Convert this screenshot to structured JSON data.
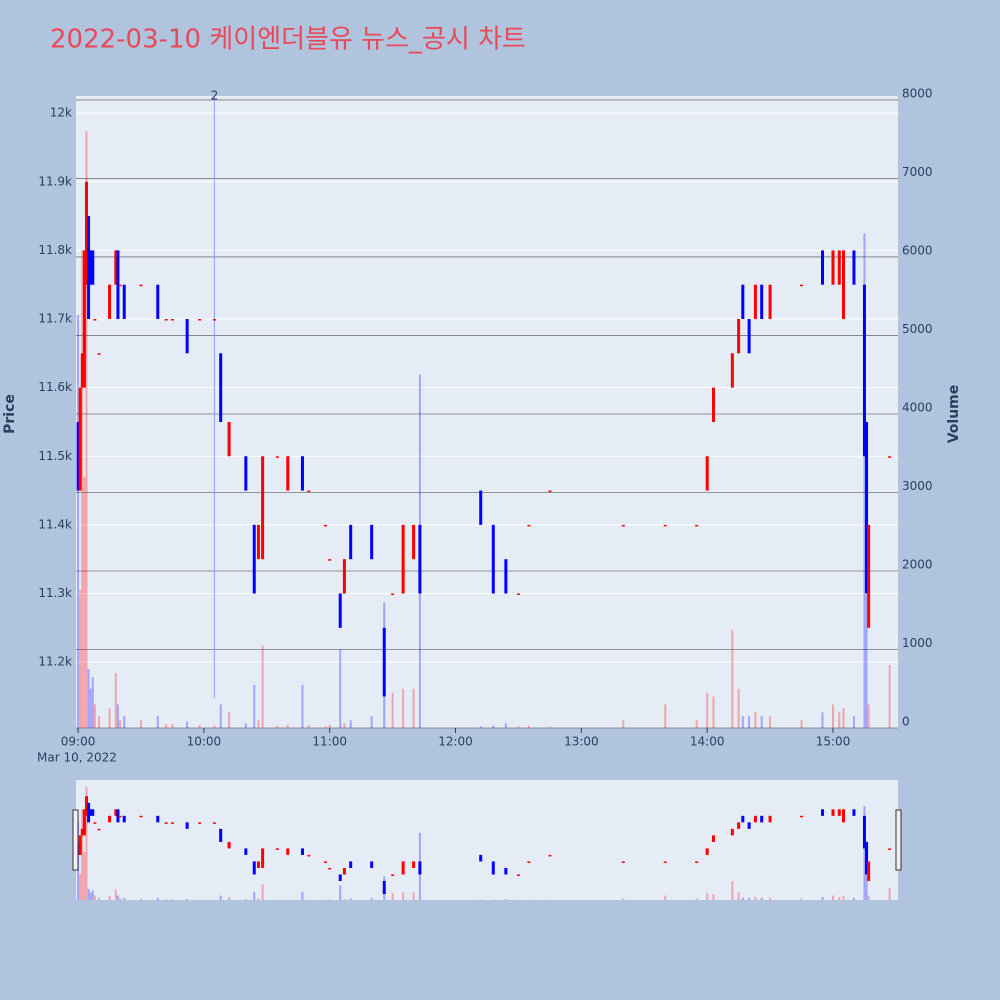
{
  "chart_data": {
    "type": "candlestick",
    "title": "2022-03-10 케이엔더블유 뉴스_공시 차트",
    "x": [
      "09:00",
      "09:01",
      "09:02",
      "09:03",
      "09:04",
      "09:05",
      "09:06",
      "09:07",
      "09:08",
      "09:10",
      "09:15",
      "09:18",
      "09:19",
      "09:20",
      "09:22",
      "09:30",
      "09:38",
      "09:42",
      "09:45",
      "09:52",
      "09:58",
      "10:05",
      "10:08",
      "10:12",
      "10:20",
      "10:24",
      "10:26",
      "10:28",
      "10:35",
      "10:40",
      "10:47",
      "10:50",
      "10:58",
      "11:00",
      "11:05",
      "11:07",
      "11:10",
      "11:20",
      "11:26",
      "11:30",
      "11:35",
      "11:40",
      "11:43",
      "12:12",
      "12:18",
      "12:24",
      "12:30",
      "12:35",
      "12:45",
      "13:20",
      "13:40",
      "13:55",
      "14:00",
      "14:03",
      "14:12",
      "14:15",
      "14:17",
      "14:20",
      "14:23",
      "14:26",
      "14:30",
      "14:45",
      "14:55",
      "15:00",
      "15:03",
      "15:05",
      "15:10",
      "15:15",
      "15:16",
      "15:17",
      "15:27"
    ],
    "open": [
      11550,
      11450,
      11600,
      11600,
      11750,
      11850,
      11800,
      11800,
      11700,
      11650,
      11700,
      11750,
      11800,
      11750,
      11750,
      11750,
      11750,
      11700,
      11700,
      11700,
      11700,
      11700,
      11650,
      11500,
      11500,
      11400,
      11350,
      11350,
      11500,
      11450,
      11500,
      11450,
      11400,
      11350,
      11300,
      11300,
      11400,
      11400,
      11250,
      11300,
      11300,
      11350,
      11400,
      11450,
      11400,
      11350,
      11300,
      11400,
      11450,
      11400,
      11400,
      11400,
      11450,
      11550,
      11600,
      11650,
      11750,
      11700,
      11700,
      11750,
      11700,
      11750,
      11800,
      11750,
      11750,
      11700,
      11800,
      11750,
      11550,
      11250,
      11500
    ],
    "close": [
      11450,
      11600,
      11650,
      11800,
      11900,
      11700,
      11750,
      11750,
      11700,
      11650,
      11750,
      11800,
      11700,
      11750,
      11700,
      11750,
      11700,
      11700,
      11700,
      11650,
      11700,
      11700,
      11550,
      11550,
      11450,
      11300,
      11400,
      11500,
      11500,
      11500,
      11450,
      11450,
      11400,
      11350,
      11250,
      11350,
      11350,
      11350,
      11150,
      11300,
      11400,
      11400,
      11300,
      11400,
      11300,
      11300,
      11300,
      11400,
      11450,
      11400,
      11400,
      11400,
      11500,
      11600,
      11650,
      11700,
      11700,
      11650,
      11750,
      11700,
      11750,
      11750,
      11750,
      11800,
      11800,
      11800,
      11750,
      11500,
      11300,
      11400,
      11500
    ],
    "volume": [
      5260,
      1760,
      6090,
      3200,
      7600,
      750,
      500,
      650,
      300,
      150,
      250,
      700,
      300,
      100,
      150,
      100,
      150,
      50,
      50,
      80,
      40,
      30,
      300,
      200,
      60,
      550,
      100,
      1050,
      30,
      40,
      550,
      40,
      20,
      40,
      1000,
      60,
      100,
      150,
      1600,
      450,
      500,
      500,
      4500,
      20,
      30,
      60,
      20,
      30,
      10,
      100,
      300,
      100,
      450,
      400,
      1250,
      500,
      150,
      150,
      200,
      150,
      150,
      100,
      200,
      300,
      200,
      250,
      150,
      6300,
      1700,
      300,
      800
    ],
    "colors": {
      "up": "#ff0000",
      "down": "#0000ff"
    },
    "xlim": [
      "08:59",
      "15:31"
    ],
    "xticks": [
      "09:00",
      "10:00",
      "11:00",
      "12:00",
      "13:00",
      "14:00",
      "15:00"
    ],
    "x_date_label": "Mar 10, 2022",
    "ylim": [
      11104,
      12025
    ],
    "yticks": [
      {
        "value": 11200,
        "label": "11.2k"
      },
      {
        "value": 11300,
        "label": "11.3k"
      },
      {
        "value": 11400,
        "label": "11.4k"
      },
      {
        "value": 11500,
        "label": "11.5k"
      },
      {
        "value": 11600,
        "label": "11.6k"
      },
      {
        "value": 11700,
        "label": "11.7k"
      },
      {
        "value": 11800,
        "label": "11.8k"
      },
      {
        "value": 11900,
        "label": "11.9k"
      },
      {
        "value": 12000,
        "label": "12k"
      }
    ],
    "y2lim": [
      0,
      8050
    ],
    "y2ticks": [
      0,
      1000,
      2000,
      3000,
      4000,
      5000,
      6000,
      7000,
      8000
    ],
    "y_label": "Price",
    "y2_label": "Volume",
    "annotations": [
      {
        "x": "10:05",
        "text": "2"
      }
    ]
  }
}
